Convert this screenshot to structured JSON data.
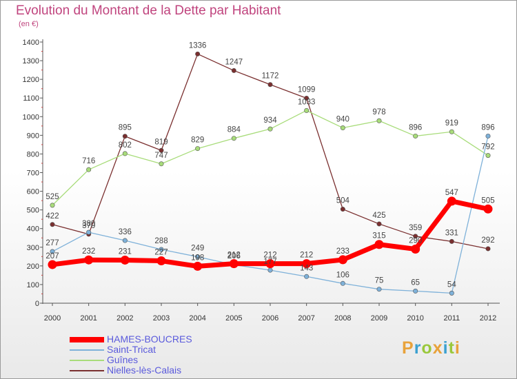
{
  "header": {
    "title": "Evolution du Montant de la Dette par Habitant",
    "subtitle": "(en €)"
  },
  "logo": {
    "text": "Proxiti",
    "colors": [
      "#e8a23a",
      "#3aa0d0",
      "#9ac83c",
      "#e8a23a",
      "#3aa0d0",
      "#9ac83c",
      "#e8a23a"
    ]
  },
  "chart_data": {
    "type": "line",
    "x": [
      "2000",
      "2001",
      "2002",
      "2003",
      "2004",
      "2005",
      "2006",
      "2007",
      "2008",
      "2009",
      "2010",
      "2011",
      "2012"
    ],
    "ylim": [
      0,
      1400
    ],
    "yticks": [
      0,
      100,
      200,
      300,
      400,
      500,
      600,
      700,
      800,
      900,
      1000,
      1100,
      1200,
      1300,
      1400
    ],
    "grid": false,
    "legend": "bottom-left",
    "series": [
      {
        "name": "HAMES-BOUCRES",
        "color": "#ff0000",
        "width": 7,
        "values": [
          207,
          232,
          231,
          227,
          198,
          212,
          212,
          212,
          233,
          315,
          290,
          547,
          505
        ],
        "labels": [
          "207",
          "232",
          "231",
          "227",
          "198",
          "212",
          "212",
          "212",
          "233",
          "315",
          "290",
          "547",
          "505"
        ]
      },
      {
        "name": "Saint-Tricat",
        "color": "#7eb1d9",
        "width": 1.3,
        "values": [
          277,
          380,
          336,
          288,
          249,
          206,
          177,
          143,
          106,
          75,
          65,
          54,
          896
        ],
        "labels": [
          "277",
          "380",
          "336",
          "288",
          "249",
          "206",
          "177",
          "143",
          "106",
          "75",
          "65",
          "54",
          "896"
        ]
      },
      {
        "name": "Guînes",
        "color": "#a8dc7a",
        "width": 1.3,
        "values": [
          525,
          716,
          802,
          747,
          829,
          884,
          934,
          1033,
          940,
          978,
          896,
          919,
          792
        ],
        "labels": [
          "525",
          "716",
          "802",
          "747",
          "829",
          "884",
          "934",
          "1033",
          "940",
          "978",
          "896",
          "919",
          "792"
        ]
      },
      {
        "name": "Nielles-lès-Calais",
        "color": "#7a2f2f",
        "width": 1.3,
        "values": [
          422,
          370,
          895,
          819,
          1336,
          1247,
          1172,
          1099,
          504,
          425,
          359,
          331,
          292
        ],
        "labels": [
          "422",
          "370",
          "895",
          "819",
          "1336",
          "1247",
          "1172",
          "1099",
          "504",
          "425",
          "359",
          "331",
          "292"
        ]
      }
    ]
  }
}
